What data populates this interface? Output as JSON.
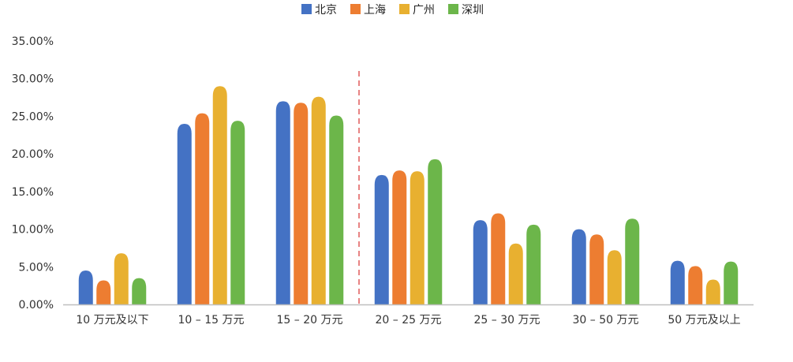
{
  "chart_data": {
    "type": "bar",
    "title": "",
    "xlabel": "",
    "ylabel": "",
    "ylim": [
      0,
      35
    ],
    "y_ticks": [
      "0.00%",
      "5.00%",
      "10.00%",
      "15.00%",
      "20.00%",
      "25.00%",
      "30.00%",
      "35.00%"
    ],
    "categories": [
      "10 万元及以下",
      "10 – 15 万元",
      "15 – 20 万元",
      "20 – 25 万元",
      "25 – 30 万元",
      "30 – 50 万元",
      "50 万元及以上"
    ],
    "series": [
      {
        "name": "北京",
        "color": "#4472C4",
        "values": [
          4.5,
          24.0,
          27.0,
          17.2,
          11.2,
          10.0,
          5.8
        ]
      },
      {
        "name": "上海",
        "color": "#ED7D31",
        "values": [
          3.2,
          25.4,
          26.8,
          17.8,
          12.1,
          9.3,
          5.1
        ]
      },
      {
        "name": "广州",
        "color": "#E8B030",
        "values": [
          6.8,
          29.0,
          27.6,
          17.7,
          8.1,
          7.2,
          3.3
        ]
      },
      {
        "name": "深圳",
        "color": "#6CB64A",
        "values": [
          3.5,
          24.4,
          25.1,
          19.3,
          10.6,
          11.4,
          5.7
        ]
      }
    ],
    "legend_position": "top-center",
    "grid": false,
    "divider_after_category": "15 – 20 万元",
    "divider_color": "#E05A5A",
    "axis_color": "#BFBFBF"
  }
}
